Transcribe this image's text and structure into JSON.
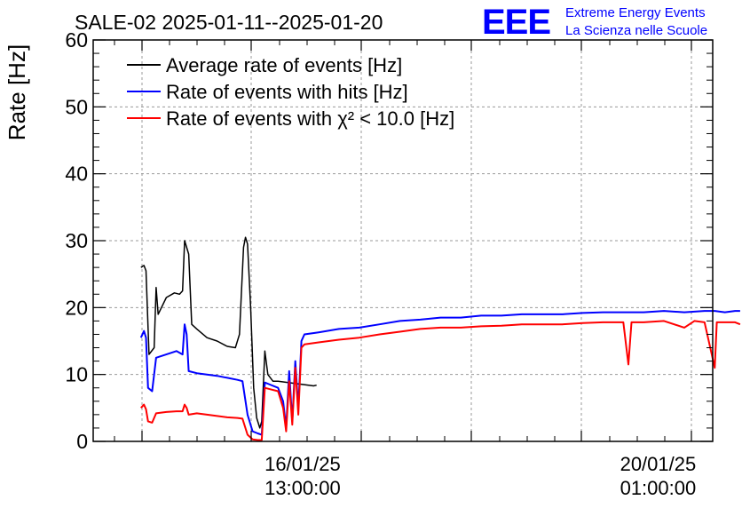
{
  "header": {
    "title": "SALE-02 2025-01-11--2025-01-20",
    "logo_text": "EEE",
    "brand_line1": "Extreme Energy Events",
    "brand_line2": "La Scienza nelle Scuole",
    "brand_color": "#0000ff"
  },
  "chart_data": {
    "type": "line",
    "title": "SALE-02 2025-01-11--2025-01-20",
    "ylabel": "Rate [Hz]",
    "xlabel": "",
    "x_unit": "days since 2025-01-11 00:00",
    "xlim": [
      3.48,
      9.58
    ],
    "ylim": [
      0,
      60
    ],
    "y_ticks": [
      0,
      10,
      20,
      30,
      40,
      50,
      60
    ],
    "x_tick_labels": [
      {
        "x": 5.5417,
        "date": "16/01/25",
        "time": "13:00:00"
      },
      {
        "x": 9.0417,
        "date": "20/01/25",
        "time": "01:00:00"
      }
    ],
    "grid": true,
    "legend_position": "top-left",
    "series": [
      {
        "name": "Average rate of events [Hz]",
        "color": "#000000",
        "points": [
          [
            3.95,
            26.0
          ],
          [
            3.98,
            26.3
          ],
          [
            4.0,
            25.5
          ],
          [
            4.03,
            13.0
          ],
          [
            4.08,
            14.0
          ],
          [
            4.1,
            23.0
          ],
          [
            4.12,
            19.0
          ],
          [
            4.2,
            21.5
          ],
          [
            4.28,
            22.2
          ],
          [
            4.33,
            22.0
          ],
          [
            4.36,
            22.5
          ],
          [
            4.38,
            30.0
          ],
          [
            4.42,
            28.0
          ],
          [
            4.45,
            17.5
          ],
          [
            4.5,
            16.8
          ],
          [
            4.6,
            15.5
          ],
          [
            4.7,
            15.0
          ],
          [
            4.8,
            14.2
          ],
          [
            4.88,
            14.0
          ],
          [
            4.92,
            16.0
          ],
          [
            4.96,
            29.0
          ],
          [
            4.98,
            30.5
          ],
          [
            5.0,
            29.5
          ],
          [
            5.03,
            20.0
          ],
          [
            5.06,
            8.0
          ],
          [
            5.09,
            3.5
          ],
          [
            5.12,
            2.0
          ],
          [
            5.14,
            3.0
          ],
          [
            5.17,
            13.5
          ],
          [
            5.2,
            10.0
          ],
          [
            5.25,
            9.0
          ],
          [
            5.3,
            9.0
          ],
          [
            5.4,
            8.8
          ],
          [
            5.5,
            8.6
          ],
          [
            5.55,
            8.5
          ],
          [
            5.6,
            8.4
          ],
          [
            5.65,
            8.3
          ],
          [
            5.68,
            8.4
          ]
        ]
      },
      {
        "name": "Rate of events with hits [Hz]",
        "color": "#0000ff",
        "points": [
          [
            3.95,
            15.5
          ],
          [
            3.98,
            16.5
          ],
          [
            4.0,
            15.5
          ],
          [
            4.02,
            8.0
          ],
          [
            4.06,
            7.5
          ],
          [
            4.1,
            12.5
          ],
          [
            4.2,
            13.0
          ],
          [
            4.3,
            13.5
          ],
          [
            4.36,
            13.0
          ],
          [
            4.38,
            17.5
          ],
          [
            4.4,
            16.0
          ],
          [
            4.42,
            10.5
          ],
          [
            4.5,
            10.2
          ],
          [
            4.6,
            10.0
          ],
          [
            4.7,
            9.8
          ],
          [
            4.8,
            9.5
          ],
          [
            4.9,
            9.2
          ],
          [
            4.95,
            9.0
          ],
          [
            5.0,
            4.0
          ],
          [
            5.05,
            1.5
          ],
          [
            5.1,
            1.2
          ],
          [
            5.14,
            1.0
          ],
          [
            5.17,
            8.8
          ],
          [
            5.22,
            8.5
          ],
          [
            5.3,
            8.0
          ],
          [
            5.35,
            6.0
          ],
          [
            5.38,
            2.0
          ],
          [
            5.41,
            10.5
          ],
          [
            5.44,
            3.0
          ],
          [
            5.47,
            12.0
          ],
          [
            5.5,
            5.0
          ],
          [
            5.53,
            15.0
          ],
          [
            5.56,
            16.0
          ],
          [
            5.7,
            16.3
          ],
          [
            5.9,
            16.8
          ],
          [
            6.1,
            17.0
          ],
          [
            6.3,
            17.5
          ],
          [
            6.5,
            18.0
          ],
          [
            6.7,
            18.2
          ],
          [
            6.9,
            18.5
          ],
          [
            7.1,
            18.5
          ],
          [
            7.3,
            18.8
          ],
          [
            7.5,
            18.8
          ],
          [
            7.7,
            19.0
          ],
          [
            7.9,
            19.0
          ],
          [
            8.1,
            19.0
          ],
          [
            8.3,
            19.2
          ],
          [
            8.5,
            19.3
          ],
          [
            8.7,
            19.3
          ],
          [
            8.9,
            19.3
          ],
          [
            9.1,
            19.5
          ],
          [
            9.3,
            19.3
          ],
          [
            9.5,
            19.5
          ],
          [
            9.6,
            19.5
          ],
          [
            9.7,
            19.3
          ],
          [
            9.8,
            19.5
          ],
          [
            9.85,
            19.5
          ]
        ]
      },
      {
        "name": "Rate of events with χ² < 10.0 [Hz]",
        "color": "#ff0000",
        "points": [
          [
            3.95,
            5.0
          ],
          [
            3.98,
            5.5
          ],
          [
            4.0,
            4.8
          ],
          [
            4.02,
            3.0
          ],
          [
            4.06,
            2.8
          ],
          [
            4.1,
            4.2
          ],
          [
            4.2,
            4.4
          ],
          [
            4.3,
            4.5
          ],
          [
            4.36,
            4.5
          ],
          [
            4.38,
            5.5
          ],
          [
            4.4,
            5.0
          ],
          [
            4.42,
            4.0
          ],
          [
            4.5,
            4.2
          ],
          [
            4.6,
            4.0
          ],
          [
            4.7,
            3.8
          ],
          [
            4.8,
            3.6
          ],
          [
            4.9,
            3.5
          ],
          [
            4.95,
            3.4
          ],
          [
            5.0,
            1.0
          ],
          [
            5.05,
            0.3
          ],
          [
            5.1,
            0.2
          ],
          [
            5.14,
            0.2
          ],
          [
            5.17,
            8.0
          ],
          [
            5.22,
            7.8
          ],
          [
            5.3,
            7.5
          ],
          [
            5.35,
            5.0
          ],
          [
            5.38,
            1.5
          ],
          [
            5.41,
            9.0
          ],
          [
            5.44,
            2.5
          ],
          [
            5.47,
            11.0
          ],
          [
            5.5,
            4.0
          ],
          [
            5.53,
            14.0
          ],
          [
            5.56,
            14.5
          ],
          [
            5.7,
            14.8
          ],
          [
            5.9,
            15.2
          ],
          [
            6.1,
            15.5
          ],
          [
            6.3,
            16.0
          ],
          [
            6.5,
            16.4
          ],
          [
            6.7,
            16.8
          ],
          [
            6.9,
            17.0
          ],
          [
            7.1,
            17.0
          ],
          [
            7.3,
            17.2
          ],
          [
            7.5,
            17.3
          ],
          [
            7.7,
            17.5
          ],
          [
            7.9,
            17.5
          ],
          [
            8.1,
            17.5
          ],
          [
            8.3,
            17.7
          ],
          [
            8.5,
            17.8
          ],
          [
            8.7,
            17.8
          ],
          [
            8.75,
            11.5
          ],
          [
            8.78,
            17.8
          ],
          [
            8.9,
            17.8
          ],
          [
            9.1,
            18.0
          ],
          [
            9.3,
            17.0
          ],
          [
            9.4,
            18.0
          ],
          [
            9.5,
            17.8
          ],
          [
            9.6,
            11.0
          ],
          [
            9.62,
            17.8
          ],
          [
            9.7,
            17.8
          ],
          [
            9.8,
            17.8
          ],
          [
            9.85,
            17.5
          ]
        ]
      }
    ]
  }
}
